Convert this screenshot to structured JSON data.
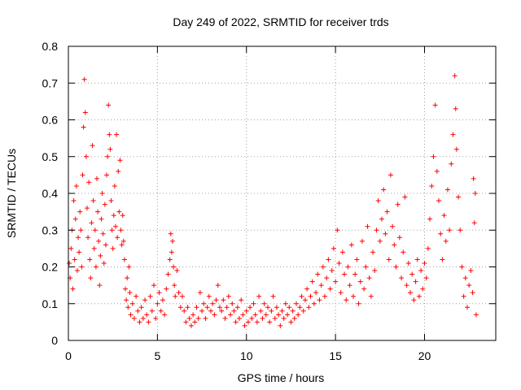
{
  "chart_data": {
    "type": "scatter",
    "title": "Day 249 of 2022, SRMTID for receiver trds",
    "xlabel": "GPS time / hours",
    "ylabel": "SRMTID / TECUs",
    "xlim": [
      0,
      24
    ],
    "ylim": [
      0,
      0.8
    ],
    "x_ticks": [
      0,
      5,
      10,
      15,
      20
    ],
    "y_ticks": [
      0,
      0.1,
      0.2,
      0.3,
      0.4,
      0.5,
      0.6,
      0.7,
      0.8
    ],
    "x_tick_labels": [
      "0",
      "5",
      "10",
      "15",
      "20"
    ],
    "y_tick_labels": [
      "0",
      "0.1",
      "0.2",
      "0.3",
      "0.4",
      "0.5",
      "0.6",
      "0.7",
      "0.8"
    ],
    "grid": true,
    "marker": "+",
    "color": "#ff0000",
    "series": [
      {
        "name": "SRMTID",
        "points": [
          [
            0.05,
            0.21
          ],
          [
            0.1,
            0.17
          ],
          [
            0.15,
            0.25
          ],
          [
            0.2,
            0.3
          ],
          [
            0.25,
            0.14
          ],
          [
            0.3,
            0.38
          ],
          [
            0.35,
            0.22
          ],
          [
            0.4,
            0.33
          ],
          [
            0.45,
            0.42
          ],
          [
            0.5,
            0.19
          ],
          [
            0.55,
            0.28
          ],
          [
            0.6,
            0.24
          ],
          [
            0.65,
            0.35
          ],
          [
            0.7,
            0.3
          ],
          [
            0.75,
            0.2
          ],
          [
            0.8,
            0.45
          ],
          [
            0.85,
            0.58
          ],
          [
            0.9,
            0.71
          ],
          [
            0.95,
            0.62
          ],
          [
            1.0,
            0.5
          ],
          [
            1.05,
            0.36
          ],
          [
            1.1,
            0.28
          ],
          [
            1.15,
            0.43
          ],
          [
            1.2,
            0.22
          ],
          [
            1.25,
            0.17
          ],
          [
            1.3,
            0.32
          ],
          [
            1.35,
            0.53
          ],
          [
            1.4,
            0.38
          ],
          [
            1.45,
            0.25
          ],
          [
            1.5,
            0.3
          ],
          [
            1.55,
            0.2
          ],
          [
            1.6,
            0.44
          ],
          [
            1.65,
            0.35
          ],
          [
            1.7,
            0.27
          ],
          [
            1.75,
            0.15
          ],
          [
            1.8,
            0.23
          ],
          [
            1.85,
            0.33
          ],
          [
            1.9,
            0.4
          ],
          [
            1.95,
            0.29
          ],
          [
            2.0,
            0.21
          ],
          [
            2.05,
            0.37
          ],
          [
            2.1,
            0.26
          ],
          [
            2.15,
            0.45
          ],
          [
            2.2,
            0.5
          ],
          [
            2.25,
            0.64
          ],
          [
            2.3,
            0.56
          ],
          [
            2.35,
            0.52
          ],
          [
            2.4,
            0.38
          ],
          [
            2.45,
            0.3
          ],
          [
            2.5,
            0.25
          ],
          [
            2.55,
            0.34
          ],
          [
            2.6,
            0.42
          ],
          [
            2.65,
            0.31
          ],
          [
            2.7,
            0.56
          ],
          [
            2.75,
            0.28
          ],
          [
            2.8,
            0.46
          ],
          [
            2.85,
            0.35
          ],
          [
            2.9,
            0.49
          ],
          [
            2.95,
            0.3
          ],
          [
            3.0,
            0.26
          ],
          [
            3.05,
            0.34
          ],
          [
            3.1,
            0.27
          ],
          [
            3.15,
            0.22
          ],
          [
            3.2,
            0.14
          ],
          [
            3.25,
            0.11
          ],
          [
            3.3,
            0.17
          ],
          [
            3.35,
            0.09
          ],
          [
            3.4,
            0.2
          ],
          [
            3.45,
            0.13
          ],
          [
            3.5,
            0.07
          ],
          [
            3.6,
            0.1
          ],
          [
            3.7,
            0.06
          ],
          [
            3.8,
            0.12
          ],
          [
            3.9,
            0.08
          ],
          [
            4.0,
            0.05
          ],
          [
            4.1,
            0.09
          ],
          [
            4.2,
            0.06
          ],
          [
            4.3,
            0.11
          ],
          [
            4.4,
            0.07
          ],
          [
            4.5,
            0.05
          ],
          [
            4.6,
            0.12
          ],
          [
            4.7,
            0.08
          ],
          [
            4.8,
            0.15
          ],
          [
            4.9,
            0.06
          ],
          [
            5.0,
            0.1
          ],
          [
            5.1,
            0.13
          ],
          [
            5.2,
            0.08
          ],
          [
            5.3,
            0.11
          ],
          [
            5.4,
            0.07
          ],
          [
            5.5,
            0.14
          ],
          [
            5.6,
            0.18
          ],
          [
            5.7,
            0.22
          ],
          [
            5.75,
            0.29
          ],
          [
            5.8,
            0.24
          ],
          [
            5.85,
            0.27
          ],
          [
            5.9,
            0.2
          ],
          [
            5.95,
            0.15
          ],
          [
            6.0,
            0.12
          ],
          [
            6.1,
            0.19
          ],
          [
            6.2,
            0.13
          ],
          [
            6.3,
            0.09
          ],
          [
            6.4,
            0.12
          ],
          [
            6.5,
            0.08
          ],
          [
            6.6,
            0.05
          ],
          [
            6.7,
            0.09
          ],
          [
            6.8,
            0.06
          ],
          [
            6.9,
            0.04
          ],
          [
            7.0,
            0.07
          ],
          [
            7.1,
            0.05
          ],
          [
            7.2,
            0.09
          ],
          [
            7.3,
            0.06
          ],
          [
            7.4,
            0.13
          ],
          [
            7.5,
            0.08
          ],
          [
            7.6,
            0.1
          ],
          [
            7.7,
            0.06
          ],
          [
            7.8,
            0.09
          ],
          [
            7.9,
            0.12
          ],
          [
            8.0,
            0.08
          ],
          [
            8.1,
            0.1
          ],
          [
            8.2,
            0.07
          ],
          [
            8.3,
            0.11
          ],
          [
            8.4,
            0.15
          ],
          [
            8.5,
            0.09
          ],
          [
            8.6,
            0.08
          ],
          [
            8.7,
            0.11
          ],
          [
            8.8,
            0.06
          ],
          [
            8.9,
            0.09
          ],
          [
            9.0,
            0.12
          ],
          [
            9.1,
            0.07
          ],
          [
            9.2,
            0.1
          ],
          [
            9.3,
            0.08
          ],
          [
            9.4,
            0.05
          ],
          [
            9.5,
            0.09
          ],
          [
            9.6,
            0.06
          ],
          [
            9.7,
            0.11
          ],
          [
            9.8,
            0.07
          ],
          [
            9.9,
            0.04
          ],
          [
            10.0,
            0.08
          ],
          [
            10.1,
            0.05
          ],
          [
            10.2,
            0.09
          ],
          [
            10.3,
            0.06
          ],
          [
            10.4,
            0.1
          ],
          [
            10.5,
            0.07
          ],
          [
            10.6,
            0.05
          ],
          [
            10.7,
            0.12
          ],
          [
            10.8,
            0.08
          ],
          [
            10.9,
            0.06
          ],
          [
            11.0,
            0.1
          ],
          [
            11.1,
            0.07
          ],
          [
            11.2,
            0.09
          ],
          [
            11.3,
            0.05
          ],
          [
            11.4,
            0.08
          ],
          [
            11.5,
            0.12
          ],
          [
            11.6,
            0.06
          ],
          [
            11.7,
            0.09
          ],
          [
            11.8,
            0.07
          ],
          [
            11.9,
            0.04
          ],
          [
            12.0,
            0.08
          ],
          [
            12.1,
            0.06
          ],
          [
            12.2,
            0.1
          ],
          [
            12.3,
            0.07
          ],
          [
            12.4,
            0.09
          ],
          [
            12.5,
            0.05
          ],
          [
            12.6,
            0.08
          ],
          [
            12.7,
            0.06
          ],
          [
            12.8,
            0.1
          ],
          [
            12.9,
            0.07
          ],
          [
            13.0,
            0.09
          ],
          [
            13.1,
            0.12
          ],
          [
            13.2,
            0.08
          ],
          [
            13.3,
            0.11
          ],
          [
            13.4,
            0.14
          ],
          [
            13.5,
            0.09
          ],
          [
            13.6,
            0.12
          ],
          [
            13.7,
            0.16
          ],
          [
            13.8,
            0.1
          ],
          [
            13.9,
            0.13
          ],
          [
            14.0,
            0.18
          ],
          [
            14.1,
            0.11
          ],
          [
            14.2,
            0.15
          ],
          [
            14.3,
            0.2
          ],
          [
            14.4,
            0.12
          ],
          [
            14.5,
            0.17
          ],
          [
            14.6,
            0.22
          ],
          [
            14.7,
            0.14
          ],
          [
            14.8,
            0.19
          ],
          [
            14.9,
            0.25
          ],
          [
            15.0,
            0.16
          ],
          [
            15.1,
            0.3
          ],
          [
            15.2,
            0.21
          ],
          [
            15.3,
            0.13
          ],
          [
            15.4,
            0.24
          ],
          [
            15.5,
            0.18
          ],
          [
            15.6,
            0.11
          ],
          [
            15.7,
            0.2
          ],
          [
            15.8,
            0.15
          ],
          [
            15.9,
            0.26
          ],
          [
            16.0,
            0.12
          ],
          [
            16.1,
            0.18
          ],
          [
            16.2,
            0.22
          ],
          [
            16.3,
            0.1
          ],
          [
            16.4,
            0.16
          ],
          [
            16.5,
            0.27
          ],
          [
            16.6,
            0.14
          ],
          [
            16.7,
            0.2
          ],
          [
            16.8,
            0.31
          ],
          [
            16.9,
            0.17
          ],
          [
            17.0,
            0.12
          ],
          [
            17.1,
            0.24
          ],
          [
            17.2,
            0.19
          ],
          [
            17.3,
            0.3
          ],
          [
            17.4,
            0.38
          ],
          [
            17.5,
            0.27
          ],
          [
            17.6,
            0.33
          ],
          [
            17.7,
            0.41
          ],
          [
            17.8,
            0.29
          ],
          [
            17.9,
            0.35
          ],
          [
            18.0,
            0.22
          ],
          [
            18.1,
            0.45
          ],
          [
            18.2,
            0.31
          ],
          [
            18.3,
            0.26
          ],
          [
            18.4,
            0.2
          ],
          [
            18.5,
            0.37
          ],
          [
            18.6,
            0.28
          ],
          [
            18.7,
            0.17
          ],
          [
            18.8,
            0.24
          ],
          [
            18.9,
            0.39
          ],
          [
            19.0,
            0.15
          ],
          [
            19.1,
            0.21
          ],
          [
            19.2,
            0.13
          ],
          [
            19.3,
            0.18
          ],
          [
            19.4,
            0.11
          ],
          [
            19.5,
            0.16
          ],
          [
            19.6,
            0.22
          ],
          [
            19.7,
            0.12
          ],
          [
            19.8,
            0.19
          ],
          [
            19.9,
            0.14
          ],
          [
            20.0,
            0.21
          ],
          [
            20.1,
            0.17
          ],
          [
            20.2,
            0.25
          ],
          [
            20.3,
            0.33
          ],
          [
            20.4,
            0.42
          ],
          [
            20.5,
            0.5
          ],
          [
            20.6,
            0.64
          ],
          [
            20.7,
            0.46
          ],
          [
            20.8,
            0.38
          ],
          [
            20.9,
            0.29
          ],
          [
            21.0,
            0.22
          ],
          [
            21.1,
            0.34
          ],
          [
            21.2,
            0.27
          ],
          [
            21.3,
            0.41
          ],
          [
            21.4,
            0.3
          ],
          [
            21.5,
            0.48
          ],
          [
            21.6,
            0.56
          ],
          [
            21.7,
            0.72
          ],
          [
            21.75,
            0.63
          ],
          [
            21.8,
            0.52
          ],
          [
            21.9,
            0.39
          ],
          [
            22.0,
            0.3
          ],
          [
            22.1,
            0.2
          ],
          [
            22.2,
            0.12
          ],
          [
            22.3,
            0.17
          ],
          [
            22.4,
            0.09
          ],
          [
            22.5,
            0.15
          ],
          [
            22.6,
            0.19
          ],
          [
            22.7,
            0.13
          ],
          [
            22.75,
            0.44
          ],
          [
            22.8,
            0.32
          ],
          [
            22.85,
            0.4
          ],
          [
            22.9,
            0.07
          ]
        ]
      }
    ]
  }
}
